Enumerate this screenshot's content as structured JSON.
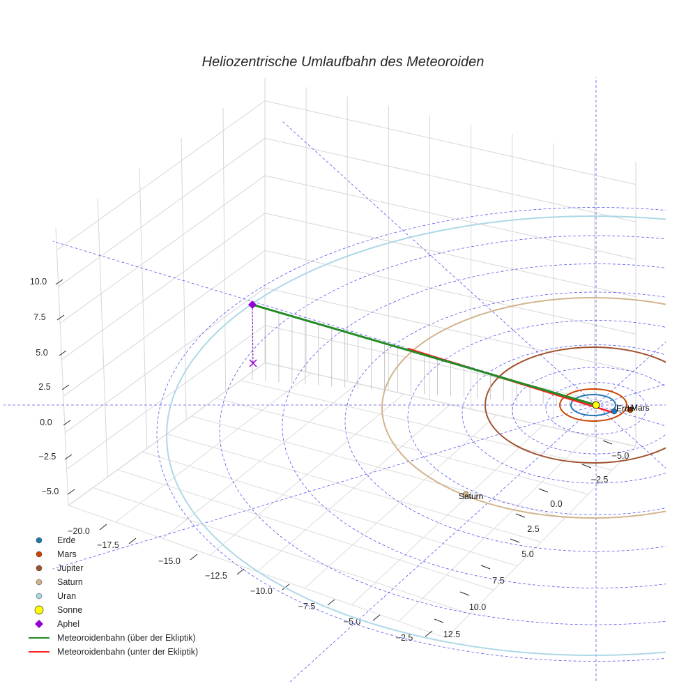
{
  "chart_data": {
    "type": "scatter3d",
    "title": "Heliozentrische Umlaufbahn des Meteoroiden",
    "x_ticks": [
      "−20.0",
      "−17.5",
      "−15.0",
      "−12.5",
      "−10.0",
      "−7.5",
      "−5.0",
      "−2.5"
    ],
    "y_ticks": [
      "12.5",
      "10.0",
      "7.5",
      "5.0",
      "2.5",
      "0.0",
      "−2.5",
      "−5.0"
    ],
    "z_ticks": [
      "10.0",
      "7.5",
      "5.0",
      "2.5",
      "0.0",
      "−2.5",
      "−5.0"
    ],
    "xlim": [
      -21,
      -1
    ],
    "ylim": [
      -6,
      13
    ],
    "zlim": [
      -6,
      11
    ],
    "planets": [
      {
        "name": "Erde",
        "orbit_au": 1.0,
        "color": "#1f77b4",
        "label": "Erde"
      },
      {
        "name": "Mars",
        "orbit_au": 1.52,
        "color": "#cc4400",
        "label": "Mars"
      },
      {
        "name": "Jupiter",
        "orbit_au": 5.2,
        "color": "#a0522d"
      },
      {
        "name": "Saturn",
        "orbit_au": 9.5,
        "color": "#d2b48c",
        "label": "Saturn"
      },
      {
        "name": "Uran",
        "orbit_au": 19.2,
        "color": "#add8e6"
      }
    ],
    "sun": {
      "name": "Sonne",
      "color": "#ffff00"
    },
    "aphel": {
      "name": "Aphel",
      "color": "#9400d3",
      "z_au": 8.0
    },
    "series": [
      {
        "name": "Meteoroidenbahn (über der Ekliptik)",
        "color": "#228b22"
      },
      {
        "name": "Meteoroidenbahn (unter der Ekliptik)",
        "color": "#ff2020"
      }
    ],
    "legend": {
      "placement": "bottom-left",
      "entries": [
        "Erde",
        "Mars",
        "Jupiter",
        "Saturn",
        "Uran",
        "Sonne",
        "Aphel",
        "Meteoroidenbahn (über der Ekliptik)",
        "Meteoroidenbahn (unter der Ekliptik)"
      ]
    },
    "grid": true
  }
}
